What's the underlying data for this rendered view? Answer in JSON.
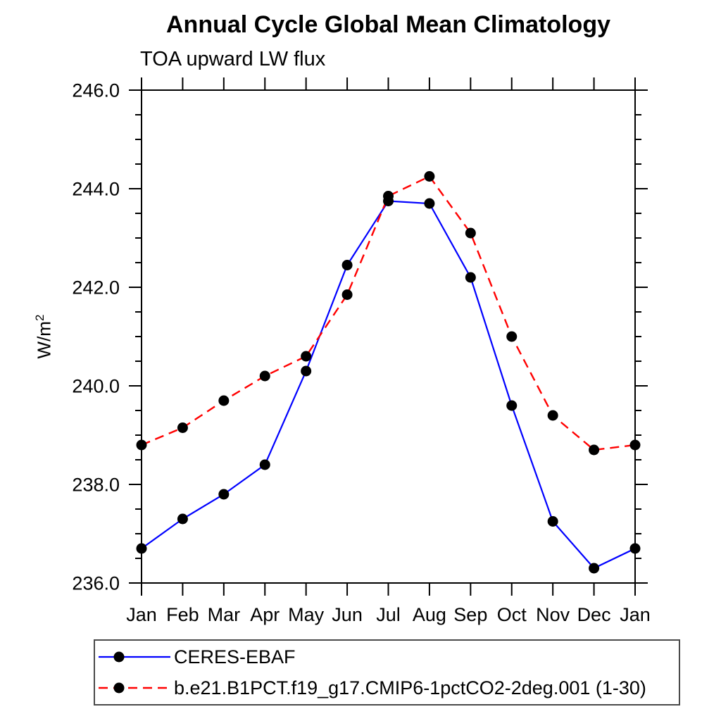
{
  "page": {
    "background": "#ffffff"
  },
  "chart_data": {
    "type": "line",
    "title": "Annual Cycle Global Mean Climatology",
    "subtitle": "TOA upward LW flux",
    "ylabel_base": "W/m",
    "ylabel_exponent": "2",
    "categories": [
      "Jan",
      "Feb",
      "Mar",
      "Apr",
      "May",
      "Jun",
      "Jul",
      "Aug",
      "Sep",
      "Oct",
      "Nov",
      "Dec",
      "Jan"
    ],
    "ylim": [
      236.0,
      246.0
    ],
    "yticks_major": [
      236,
      238,
      240,
      242,
      244,
      246
    ],
    "ytick_labels": [
      "236.0",
      "238.0",
      "240.0",
      "242.0",
      "244.0",
      "246.0"
    ],
    "ytick_minor_step": 0.5,
    "grid": false,
    "axis_color": "#000000",
    "marker_color": "#000000",
    "legend_position": "bottom",
    "series": [
      {
        "name": "CERES-EBAF",
        "color": "#0000ff",
        "line_style": "solid",
        "marker": "filled-circle",
        "marker_color": "#000000",
        "values": [
          236.7,
          237.3,
          237.8,
          238.4,
          240.3,
          242.45,
          243.75,
          243.7,
          242.2,
          239.6,
          237.25,
          236.3,
          236.7
        ]
      },
      {
        "name": "b.e21.B1PCT.f19_g17.CMIP6-1pctCO2-2deg.001 (1-30)",
        "color": "#ff0000",
        "line_style": "dashed",
        "marker": "filled-circle",
        "marker_color": "#000000",
        "values": [
          238.8,
          239.15,
          239.7,
          240.2,
          240.6,
          241.85,
          243.85,
          244.25,
          243.1,
          241.0,
          239.4,
          238.7,
          238.8
        ]
      }
    ]
  }
}
